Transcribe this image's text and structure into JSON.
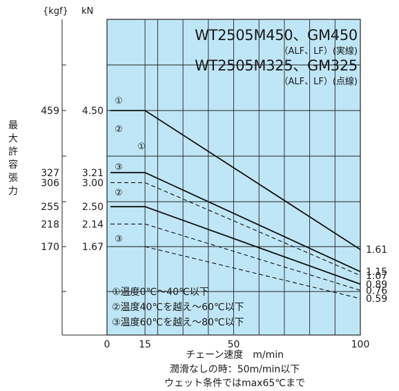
{
  "chart_data": {
    "type": "line",
    "title_lines": [
      {
        "main": "WT2505M450、GM450",
        "sub": "（ALF、LF）(実線)"
      },
      {
        "main": "WT2505M325、GM325",
        "sub": "（ALF、LF）(点線)"
      }
    ],
    "xlabel": "チェーン速度　m/min",
    "xlim": [
      0,
      100
    ],
    "x_ticks": [
      "0",
      "15",
      "50",
      "100"
    ],
    "ylabel_chars": [
      "最",
      "大",
      "許",
      "容",
      "張",
      "力"
    ],
    "y_unit_kgf": "{kgf}",
    "y_unit_kn": "kN",
    "y_ticks_kn": [
      "4.50",
      "3.21",
      "3.00",
      "2.50",
      "2.14",
      "1.67"
    ],
    "y_ticks_kgf": [
      "459",
      "327",
      "306",
      "255",
      "218",
      "170"
    ],
    "grid": true,
    "series": [
      {
        "label": "①",
        "style": "solid",
        "x": [
          0,
          15,
          100
        ],
        "y": [
          4.5,
          4.5,
          1.61
        ],
        "end_label": "1.61"
      },
      {
        "label": "②",
        "style": "solid",
        "x": [
          0,
          15,
          100
        ],
        "y": [
          3.21,
          3.21,
          1.15
        ],
        "end_label": "1.15"
      },
      {
        "label": "③",
        "style": "solid",
        "x": [
          0,
          15,
          100
        ],
        "y": [
          2.5,
          2.5,
          0.89
        ],
        "end_label": "0.89"
      },
      {
        "label": "①",
        "style": "dashed",
        "x": [
          0,
          15,
          100
        ],
        "y": [
          3.0,
          3.0,
          1.07
        ],
        "end_label": "1.07"
      },
      {
        "label": "②",
        "style": "dashed",
        "x": [
          0,
          15,
          100
        ],
        "y": [
          2.14,
          2.14,
          0.76
        ],
        "end_label": "0.76"
      },
      {
        "label": "③",
        "style": "dashed",
        "x": [
          0,
          15,
          100
        ],
        "y": [
          1.67,
          1.67,
          0.59
        ],
        "end_label": "0.59"
      }
    ],
    "legend": [
      "①温度0℃～40℃以下",
      "②温度40℃を越え～60℃以下",
      "③温度60℃を越え～80℃以下"
    ],
    "notes": [
      "潤滑なしの時：50m/min以下",
      "ウェット条件ではmax65℃まで"
    ]
  },
  "colors": {
    "plot_bg": "#bfe6f6",
    "grid": "#222222",
    "line": "#111111"
  }
}
